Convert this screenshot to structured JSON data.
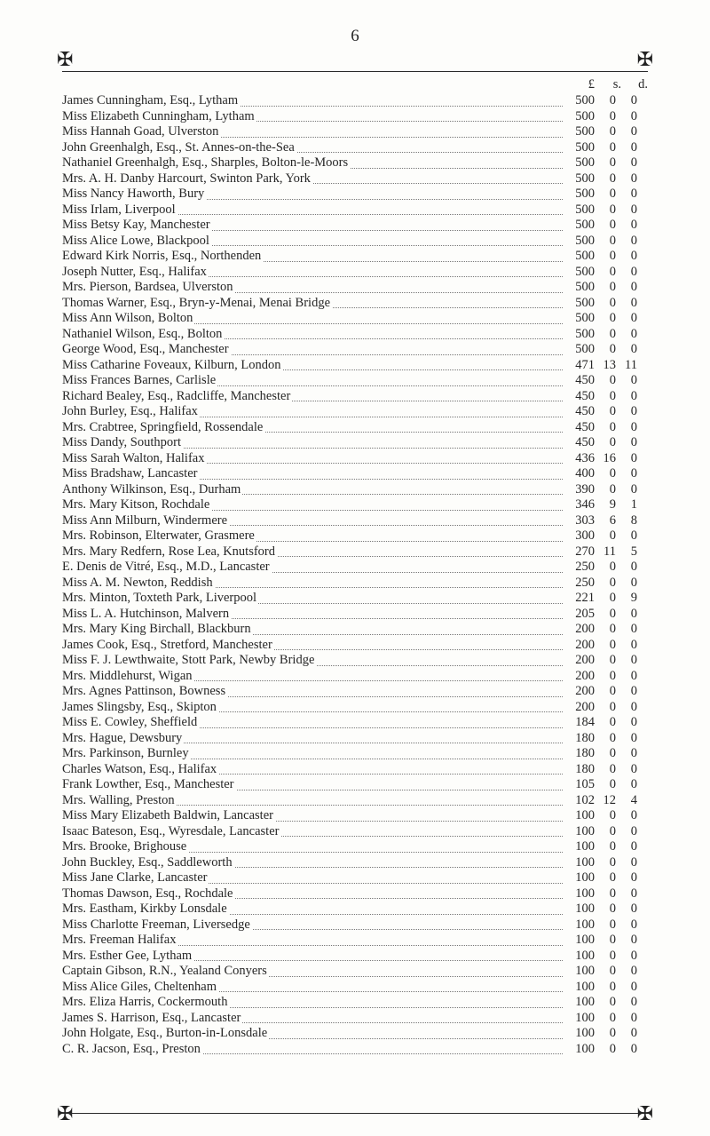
{
  "page_number": "6",
  "currency_header": {
    "pounds": "£",
    "shillings": "s.",
    "pence": "d."
  },
  "ornament_glyph": "✠",
  "entries": [
    {
      "name": "James Cunningham, Esq., Lytham",
      "p": "500",
      "s": "0",
      "d": "0"
    },
    {
      "name": "Miss Elizabeth Cunningham, Lytham",
      "p": "500",
      "s": "0",
      "d": "0"
    },
    {
      "name": "Miss Hannah Goad, Ulverston",
      "p": "500",
      "s": "0",
      "d": "0"
    },
    {
      "name": "John Greenhalgh, Esq., St. Annes-on-the-Sea",
      "p": "500",
      "s": "0",
      "d": "0"
    },
    {
      "name": "Nathaniel Greenhalgh, Esq., Sharples, Bolton-le-Moors",
      "p": "500",
      "s": "0",
      "d": "0"
    },
    {
      "name": "Mrs. A. H. Danby Harcourt, Swinton Park, York",
      "p": "500",
      "s": "0",
      "d": "0"
    },
    {
      "name": "Miss Nancy Haworth, Bury",
      "p": "500",
      "s": "0",
      "d": "0"
    },
    {
      "name": "Miss Irlam, Liverpool",
      "p": "500",
      "s": "0",
      "d": "0"
    },
    {
      "name": "Miss Betsy Kay, Manchester",
      "p": "500",
      "s": "0",
      "d": "0"
    },
    {
      "name": "Miss Alice Lowe, Blackpool",
      "p": "500",
      "s": "0",
      "d": "0"
    },
    {
      "name": "Edward Kirk Norris, Esq., Northenden",
      "p": "500",
      "s": "0",
      "d": "0"
    },
    {
      "name": "Joseph Nutter, Esq., Halifax",
      "p": "500",
      "s": "0",
      "d": "0"
    },
    {
      "name": "Mrs. Pierson, Bardsea, Ulverston",
      "p": "500",
      "s": "0",
      "d": "0"
    },
    {
      "name": "Thomas Warner, Esq., Bryn-y-Menai, Menai Bridge",
      "p": "500",
      "s": "0",
      "d": "0"
    },
    {
      "name": "Miss Ann Wilson, Bolton",
      "p": "500",
      "s": "0",
      "d": "0"
    },
    {
      "name": "Nathaniel Wilson, Esq., Bolton",
      "p": "500",
      "s": "0",
      "d": "0"
    },
    {
      "name": "George Wood, Esq., Manchester",
      "p": "500",
      "s": "0",
      "d": "0"
    },
    {
      "name": "Miss Catharine Foveaux, Kilburn, London",
      "p": "471",
      "s": "13",
      "d": "11"
    },
    {
      "name": "Miss Frances Barnes, Carlisle",
      "p": "450",
      "s": "0",
      "d": "0"
    },
    {
      "name": "Richard Bealey, Esq., Radcliffe, Manchester",
      "p": "450",
      "s": "0",
      "d": "0"
    },
    {
      "name": "John Burley, Esq., Halifax",
      "p": "450",
      "s": "0",
      "d": "0"
    },
    {
      "name": "Mrs. Crabtree, Springfield, Rossendale",
      "p": "450",
      "s": "0",
      "d": "0"
    },
    {
      "name": "Miss Dandy, Southport",
      "p": "450",
      "s": "0",
      "d": "0"
    },
    {
      "name": "Miss Sarah Walton, Halifax",
      "p": "436",
      "s": "16",
      "d": "0"
    },
    {
      "name": "Miss Bradshaw, Lancaster",
      "p": "400",
      "s": "0",
      "d": "0"
    },
    {
      "name": "Anthony Wilkinson, Esq., Durham",
      "p": "390",
      "s": "0",
      "d": "0"
    },
    {
      "name": "Mrs. Mary Kitson, Rochdale",
      "p": "346",
      "s": "9",
      "d": "1"
    },
    {
      "name": "Miss Ann Milburn, Windermere",
      "p": "303",
      "s": "6",
      "d": "8"
    },
    {
      "name": "Mrs. Robinson, Elterwater, Grasmere",
      "p": "300",
      "s": "0",
      "d": "0"
    },
    {
      "name": "Mrs. Mary Redfern, Rose Lea, Knutsford",
      "p": "270",
      "s": "11",
      "d": "5"
    },
    {
      "name": "E. Denis de Vitré, Esq., M.D., Lancaster",
      "p": "250",
      "s": "0",
      "d": "0"
    },
    {
      "name": "Miss A. M. Newton, Reddish",
      "p": "250",
      "s": "0",
      "d": "0"
    },
    {
      "name": "Mrs. Minton, Toxteth Park, Liverpool",
      "p": "221",
      "s": "0",
      "d": "9"
    },
    {
      "name": "Miss L. A. Hutchinson, Malvern",
      "p": "205",
      "s": "0",
      "d": "0"
    },
    {
      "name": "Mrs. Mary King Birchall, Blackburn",
      "p": "200",
      "s": "0",
      "d": "0"
    },
    {
      "name": "James Cook, Esq., Stretford, Manchester",
      "p": "200",
      "s": "0",
      "d": "0"
    },
    {
      "name": "Miss F. J. Lewthwaite, Stott Park, Newby Bridge",
      "p": "200",
      "s": "0",
      "d": "0"
    },
    {
      "name": "Mrs. Middlehurst, Wigan",
      "p": "200",
      "s": "0",
      "d": "0"
    },
    {
      "name": "Mrs. Agnes Pattinson, Bowness",
      "p": "200",
      "s": "0",
      "d": "0"
    },
    {
      "name": "James Slingsby, Esq., Skipton",
      "p": "200",
      "s": "0",
      "d": "0"
    },
    {
      "name": "Miss E. Cowley, Sheffield",
      "p": "184",
      "s": "0",
      "d": "0"
    },
    {
      "name": "Mrs. Hague, Dewsbury",
      "p": "180",
      "s": "0",
      "d": "0"
    },
    {
      "name": "Mrs. Parkinson, Burnley",
      "p": "180",
      "s": "0",
      "d": "0"
    },
    {
      "name": "Charles Watson, Esq., Halifax",
      "p": "180",
      "s": "0",
      "d": "0"
    },
    {
      "name": "Frank Lowther, Esq., Manchester",
      "p": "105",
      "s": "0",
      "d": "0"
    },
    {
      "name": "Mrs. Walling, Preston",
      "p": "102",
      "s": "12",
      "d": "4"
    },
    {
      "name": "Miss Mary Elizabeth Baldwin, Lancaster",
      "p": "100",
      "s": "0",
      "d": "0"
    },
    {
      "name": "Isaac Bateson, Esq., Wyresdale, Lancaster",
      "p": "100",
      "s": "0",
      "d": "0"
    },
    {
      "name": "Mrs. Brooke, Brighouse",
      "p": "100",
      "s": "0",
      "d": "0"
    },
    {
      "name": "John Buckley, Esq., Saddleworth",
      "p": "100",
      "s": "0",
      "d": "0"
    },
    {
      "name": "Miss Jane Clarke, Lancaster",
      "p": "100",
      "s": "0",
      "d": "0"
    },
    {
      "name": "Thomas Dawson, Esq., Rochdale",
      "p": "100",
      "s": "0",
      "d": "0"
    },
    {
      "name": "Mrs. Eastham, Kirkby Lonsdale",
      "p": "100",
      "s": "0",
      "d": "0"
    },
    {
      "name": "Miss Charlotte Freeman, Liversedge",
      "p": "100",
      "s": "0",
      "d": "0"
    },
    {
      "name": "Mrs. Freeman Halifax",
      "p": "100",
      "s": "0",
      "d": "0"
    },
    {
      "name": "Mrs. Esther Gee, Lytham",
      "p": "100",
      "s": "0",
      "d": "0"
    },
    {
      "name": "Captain Gibson, R.N., Yealand Conyers",
      "p": "100",
      "s": "0",
      "d": "0"
    },
    {
      "name": "Miss Alice Giles, Cheltenham",
      "p": "100",
      "s": "0",
      "d": "0"
    },
    {
      "name": "Mrs. Eliza Harris, Cockermouth",
      "p": "100",
      "s": "0",
      "d": "0"
    },
    {
      "name": "James S. Harrison, Esq., Lancaster",
      "p": "100",
      "s": "0",
      "d": "0"
    },
    {
      "name": "John Holgate, Esq., Burton-in-Lonsdale",
      "p": "100",
      "s": "0",
      "d": "0"
    },
    {
      "name": "C. R. Jacson, Esq., Preston",
      "p": "100",
      "s": "0",
      "d": "0"
    }
  ]
}
